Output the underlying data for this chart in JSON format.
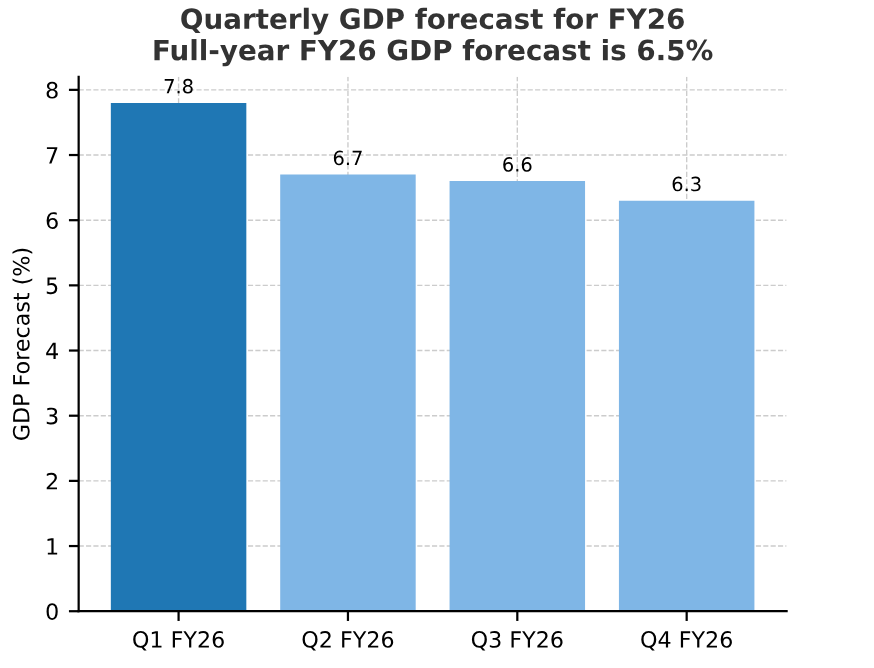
{
  "chart_data": {
    "type": "bar",
    "title": "Quarterly GDP forecast for FY26\nFull-year FY26 GDP forecast is 6.5%",
    "ylabel": "GDP Forecast (%)",
    "categories": [
      "Q1 FY26",
      "Q2 FY26",
      "Q3 FY26",
      "Q4 FY26"
    ],
    "values": [
      7.8,
      6.7,
      6.6,
      6.3
    ],
    "colors": [
      "#1f77b4",
      "#7fb6e6",
      "#7fb6e6",
      "#7fb6e6"
    ],
    "ylim": [
      0,
      8.2
    ],
    "yticks": [
      0,
      1,
      2,
      3,
      4,
      5,
      6,
      7,
      8
    ],
    "grid": true,
    "data_labels": true
  }
}
